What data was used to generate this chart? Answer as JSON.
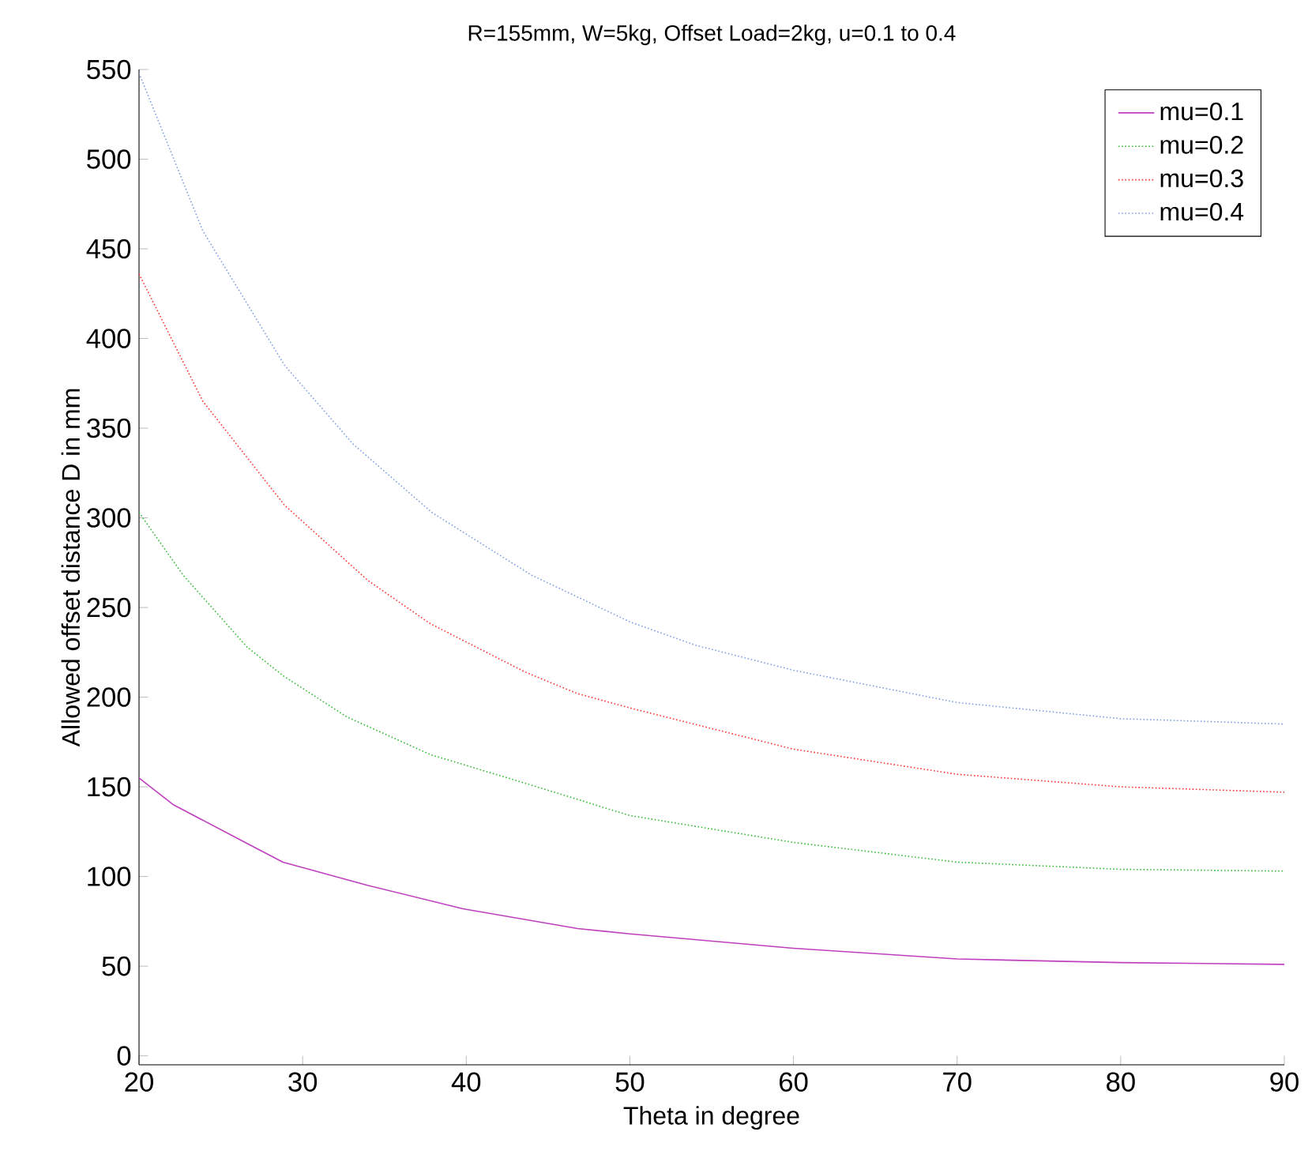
{
  "chart_data": {
    "type": "line",
    "title": "R=155mm, W=5kg, Offset Load=2kg,  u=0.1 to 0.4",
    "xlabel": "Theta in degree",
    "ylabel": "Allowed offset distance D in mm",
    "xlim": [
      20,
      90
    ],
    "ylim": [
      -5,
      550
    ],
    "xticks": [
      20,
      30,
      40,
      50,
      60,
      70,
      80,
      90
    ],
    "yticks": [
      0,
      50,
      100,
      150,
      200,
      250,
      300,
      350,
      400,
      450,
      500,
      550
    ],
    "grid": false,
    "legend": "top right",
    "marker": "none",
    "series": [
      {
        "name": "mu=0.1",
        "color": "#bf40bf",
        "line_style": "solid",
        "x": [
          20,
          22.1,
          26.9,
          28.8,
          34,
          39.8,
          46.8,
          50,
          60,
          70,
          80,
          90
        ],
        "values": [
          155,
          140,
          117,
          108,
          95,
          82,
          71,
          68,
          60,
          54,
          52,
          51
        ]
      },
      {
        "name": "mu=0.2",
        "color": "#33bb33",
        "line_style": "dotted",
        "x": [
          20,
          22.7,
          26.6,
          28.8,
          32.7,
          37.8,
          43.6,
          46.8,
          50,
          60,
          70,
          80,
          90
        ],
        "values": [
          303,
          268,
          228,
          212,
          189,
          168,
          152,
          143,
          134,
          119,
          108,
          104,
          103
        ]
      },
      {
        "name": "mu=0.3",
        "color": "#ff3333",
        "line_style": "dotted",
        "x": [
          20,
          23.9,
          28.9,
          34,
          37.8,
          43.6,
          46.8,
          50,
          60,
          70,
          80,
          90
        ],
        "values": [
          436,
          365,
          307,
          265,
          241,
          214,
          202,
          194,
          171,
          157,
          150,
          147
        ]
      },
      {
        "name": "mu=0.4",
        "color": "#7f9fdf",
        "line_style": "dotted",
        "x": [
          20,
          23.9,
          28.9,
          33.1,
          37.9,
          41.9,
          44,
          50,
          54,
          60,
          70,
          80,
          90
        ],
        "values": [
          548,
          460,
          385,
          341,
          303,
          280,
          268,
          242,
          229,
          215,
          197,
          188,
          185
        ]
      }
    ]
  }
}
